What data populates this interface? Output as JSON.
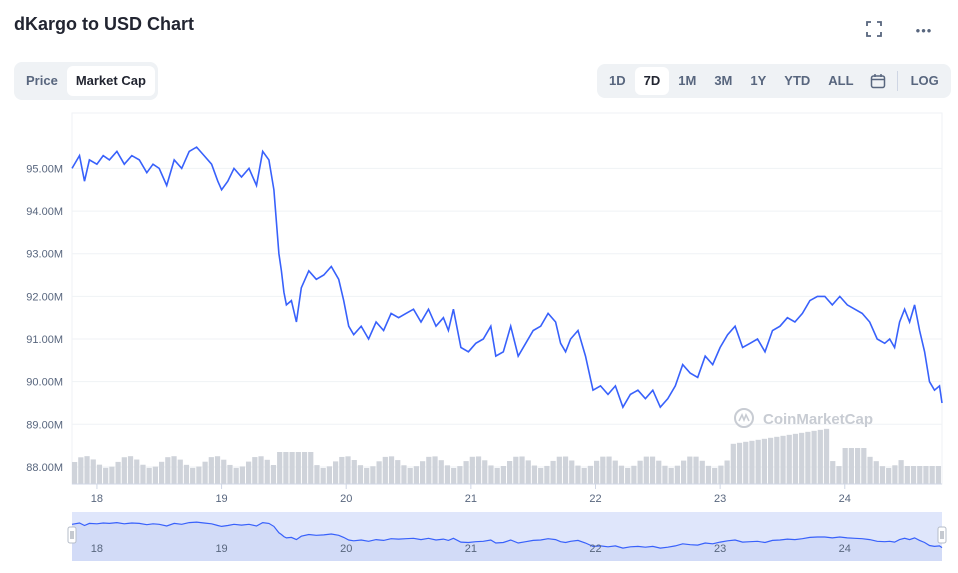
{
  "title": "dKargo to USD Chart",
  "icons": {
    "fullscreen": "fullscreen-icon",
    "more": "more-icon",
    "calendar": "calendar-icon"
  },
  "more_label": "•••",
  "fullscreen_label": "⛶",
  "metric_tabs": [
    {
      "label": "Price",
      "active": false
    },
    {
      "label": "Market Cap",
      "active": true
    }
  ],
  "range_tabs": [
    {
      "label": "1D",
      "active": false
    },
    {
      "label": "7D",
      "active": true
    },
    {
      "label": "1M",
      "active": false
    },
    {
      "label": "3M",
      "active": false
    },
    {
      "label": "1Y",
      "active": false
    },
    {
      "label": "YTD",
      "active": false
    },
    {
      "label": "ALL",
      "active": false
    }
  ],
  "log_label": "LOG",
  "watermark": "CoinMarketCap",
  "colors": {
    "line": "#3861fb",
    "volume": "#cfd3da",
    "grid": "#eff2f5",
    "navigator_fill": "#dfe6fb"
  },
  "chart_data": {
    "type": "line",
    "title": "",
    "xlabel": "",
    "ylabel": "",
    "x_ticks": [
      "18",
      "19",
      "20",
      "21",
      "22",
      "23",
      "24"
    ],
    "y_ticks": [
      "88.00M",
      "89.00M",
      "90.00M",
      "91.00M",
      "92.00M",
      "93.00M",
      "94.00M",
      "95.00M"
    ],
    "y_tick_values": [
      88.0,
      89.0,
      90.0,
      91.0,
      92.0,
      93.0,
      94.0,
      95.0
    ],
    "ylim": [
      87.6,
      96.3
    ],
    "xlim": [
      17.8,
      24.78
    ],
    "grid": true,
    "legend": "none",
    "series": [
      {
        "values_unit": "USD millions",
        "x": [
          17.8,
          17.86,
          17.9,
          17.94,
          18.0,
          18.05,
          18.1,
          18.16,
          18.22,
          18.28,
          18.34,
          18.4,
          18.45,
          18.5,
          18.56,
          18.62,
          18.68,
          18.74,
          18.8,
          18.86,
          18.92,
          18.97,
          19.0,
          19.05,
          19.1,
          19.16,
          19.22,
          19.28,
          19.33,
          19.38,
          19.42,
          19.46,
          19.48,
          19.5,
          19.52,
          19.56,
          19.6,
          19.64,
          19.7,
          19.76,
          19.82,
          19.88,
          19.94,
          19.98,
          20.02,
          20.06,
          20.12,
          20.18,
          20.24,
          20.3,
          20.36,
          20.42,
          20.48,
          20.54,
          20.6,
          20.66,
          20.72,
          20.78,
          20.82,
          20.86,
          20.92,
          20.98,
          21.04,
          21.1,
          21.16,
          21.2,
          21.26,
          21.32,
          21.38,
          21.44,
          21.5,
          21.56,
          21.62,
          21.68,
          21.72,
          21.76,
          21.8,
          21.86,
          21.92,
          21.98,
          22.04,
          22.1,
          22.16,
          22.22,
          22.28,
          22.34,
          22.4,
          22.46,
          22.52,
          22.58,
          22.64,
          22.7,
          22.76,
          22.82,
          22.88,
          22.94,
          23.0,
          23.06,
          23.12,
          23.18,
          23.24,
          23.3,
          23.36,
          23.42,
          23.48,
          23.54,
          23.6,
          23.66,
          23.72,
          23.78,
          23.84,
          23.9,
          23.96,
          24.02,
          24.08,
          24.14,
          24.2,
          24.26,
          24.32,
          24.36,
          24.4,
          24.44,
          24.48,
          24.52,
          24.56,
          24.6,
          24.64,
          24.68,
          24.72,
          24.76,
          24.78
        ],
        "values": [
          95.0,
          95.3,
          94.7,
          95.2,
          95.1,
          95.3,
          95.2,
          95.4,
          95.1,
          95.3,
          95.2,
          94.9,
          95.1,
          95.0,
          94.6,
          95.2,
          95.0,
          95.4,
          95.5,
          95.3,
          95.1,
          94.7,
          94.5,
          94.7,
          95.0,
          94.8,
          95.0,
          94.6,
          95.4,
          95.2,
          94.5,
          93.0,
          92.6,
          92.1,
          91.8,
          91.9,
          91.4,
          92.2,
          92.6,
          92.4,
          92.5,
          92.7,
          92.4,
          91.9,
          91.3,
          91.1,
          91.3,
          91.0,
          91.4,
          91.2,
          91.6,
          91.5,
          91.6,
          91.7,
          91.4,
          91.7,
          91.3,
          91.5,
          91.2,
          91.7,
          90.8,
          90.7,
          90.9,
          91.0,
          91.3,
          90.6,
          90.7,
          91.3,
          90.6,
          90.9,
          91.2,
          91.3,
          91.6,
          91.4,
          90.9,
          90.7,
          91.0,
          91.2,
          90.6,
          89.8,
          89.9,
          89.7,
          89.9,
          89.4,
          89.7,
          89.8,
          89.6,
          89.8,
          89.4,
          89.6,
          89.9,
          90.4,
          90.2,
          90.1,
          90.6,
          90.4,
          90.8,
          91.1,
          91.3,
          90.8,
          90.9,
          91.0,
          90.7,
          91.2,
          91.3,
          91.5,
          91.4,
          91.6,
          91.9,
          92.0,
          92.0,
          91.8,
          92.0,
          91.8,
          91.7,
          91.6,
          91.4,
          91.0,
          90.9,
          91.0,
          90.8,
          91.4,
          91.7,
          91.4,
          91.8,
          91.2,
          90.7,
          90.0,
          89.8,
          89.9,
          89.5
        ]
      }
    ],
    "volume_note": "volume bars drawn from series magnitude"
  }
}
